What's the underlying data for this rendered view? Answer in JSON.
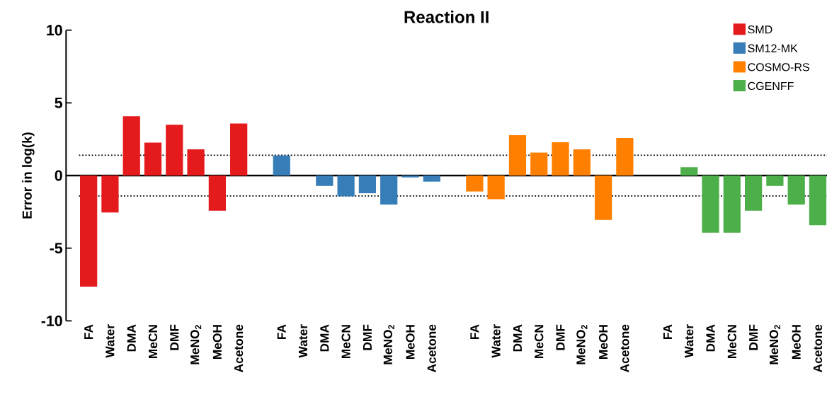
{
  "chart_data": {
    "type": "bar",
    "title": "Reaction II",
    "ylabel": "Error in log(k)",
    "categories": [
      "FA",
      "Water",
      "DMA",
      "MeCN",
      "DMF",
      "MeNO$_{2}$",
      "MeOH",
      "Acetone",
      null,
      "FA",
      "Water",
      "DMA",
      "MeCN",
      "DMF",
      "MeNO$_{2}$",
      "MeOH",
      "Acetone",
      null,
      "FA",
      "Water",
      "DMA",
      "MeCN",
      "DMF",
      "MeNO$_{2}$",
      "MeOH",
      "Acetone",
      null,
      "FA",
      "Water",
      "DMA",
      "MeCN",
      "DMF",
      "MeNO$_{2}$",
      "MeOH",
      "Acetone"
    ],
    "series": [
      {
        "name": "SMD",
        "color": "#e41a1c",
        "values": [
          -7.65,
          -2.55,
          4.08,
          2.26,
          3.5,
          1.8,
          -2.42,
          3.58,
          null,
          null,
          null,
          null,
          null,
          null,
          null,
          null,
          null,
          null,
          null,
          null,
          null,
          null,
          null,
          null,
          null,
          null,
          null,
          null,
          null,
          null,
          null,
          null,
          null,
          null,
          null
        ]
      },
      {
        "name": "SM12-MK",
        "color": "#377eb8",
        "values": [
          null,
          null,
          null,
          null,
          null,
          null,
          null,
          null,
          null,
          1.38,
          null,
          -0.72,
          -1.43,
          -1.22,
          -2.0,
          -0.13,
          -0.42,
          null,
          null,
          null,
          null,
          null,
          null,
          null,
          null,
          null,
          null,
          null,
          null,
          null,
          null,
          null,
          null,
          null,
          null
        ]
      },
      {
        "name": "COSMO-RS",
        "color": "#ff7f00",
        "values": [
          null,
          null,
          null,
          null,
          null,
          null,
          null,
          null,
          null,
          null,
          null,
          null,
          null,
          null,
          null,
          null,
          null,
          null,
          -1.1,
          -1.63,
          2.78,
          1.58,
          2.29,
          1.8,
          -3.05,
          2.58,
          null,
          null,
          null,
          null,
          null,
          null,
          null,
          null,
          null
        ]
      },
      {
        "name": "CGENFF",
        "color": "#4daf4a",
        "values": [
          null,
          null,
          null,
          null,
          null,
          null,
          null,
          null,
          null,
          null,
          null,
          null,
          null,
          null,
          null,
          null,
          null,
          null,
          null,
          null,
          null,
          null,
          null,
          null,
          null,
          null,
          null,
          null,
          0.57,
          -3.93,
          -3.93,
          -2.42,
          -0.72,
          -2.0,
          -3.42
        ]
      }
    ],
    "ylim": [
      -10,
      10
    ],
    "yticks": [
      -10,
      -5,
      0,
      5,
      10
    ],
    "ref_lines": [
      {
        "axis": "y",
        "value": 0,
        "color": "#000000",
        "line_style": "solid"
      },
      {
        "axis": "y",
        "value": 1.4,
        "color": "#000000",
        "line_style": "dotted"
      },
      {
        "axis": "y",
        "value": -1.4,
        "color": "#000000",
        "line_style": "dotted"
      }
    ],
    "legend": "top right",
    "grid": false
  }
}
